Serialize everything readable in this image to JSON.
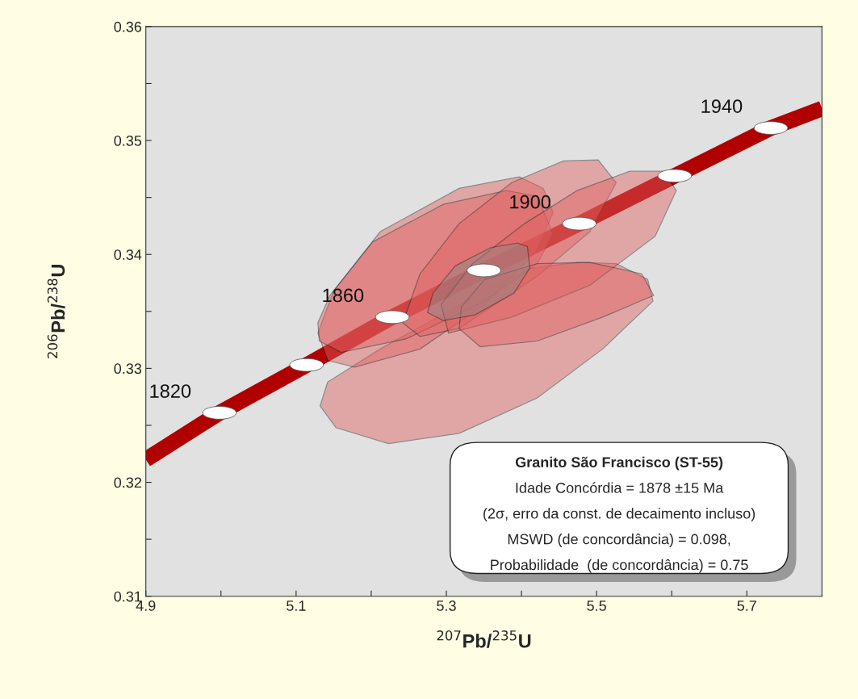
{
  "chart_data": {
    "type": "line",
    "xlabel": "$^{207}$Pb/$^{235}$U",
    "ylabel": "$^{206}$Pb/$^{238}$U",
    "xlim": [
      4.9,
      5.8
    ],
    "ylim": [
      0.31,
      0.36
    ],
    "xticks": [
      4.9,
      {
        "value": 5.0,
        "label": null
      },
      5.1,
      {
        "value": 5.2,
        "label": null
      },
      5.3,
      {
        "value": 5.4,
        "label": null
      },
      5.5,
      {
        "value": 5.6,
        "label": null
      },
      5.7
    ],
    "yticks": [
      0.31,
      {
        "value": 0.315,
        "label": null
      },
      0.32,
      {
        "value": 0.325,
        "label": null
      },
      0.33,
      {
        "value": 0.335,
        "label": null
      },
      0.34,
      {
        "value": 0.345,
        "label": null
      },
      0.35,
      {
        "value": 0.355,
        "label": null
      },
      0.36
    ],
    "grid": false,
    "legend": false,
    "series": [
      {
        "type": "line",
        "color": "#b00000",
        "x": [
          4.9,
          4.998,
          5.114,
          5.228,
          5.35,
          5.477,
          5.604,
          5.732,
          5.8
        ],
        "values": [
          0.322,
          0.3261,
          0.3303,
          0.3345,
          0.3386,
          0.3427,
          0.3469,
          0.3511,
          0.3528
        ]
      },
      {
        "type": "area",
        "color": "#e06060",
        "x": [
          5.132,
          5.153,
          5.223,
          5.317,
          5.421,
          5.508,
          5.575,
          5.568,
          5.526,
          5.474,
          5.414,
          5.351,
          5.212,
          5.142
        ],
        "values": [
          0.3267,
          0.3248,
          0.3234,
          0.3243,
          0.3274,
          0.3317,
          0.3359,
          0.3378,
          0.3392,
          0.3393,
          0.3388,
          0.3368,
          0.3317,
          0.3288
        ]
      },
      {
        "type": "area",
        "color": "#e06060",
        "x": [
          5.129,
          5.142,
          5.178,
          5.265,
          5.351,
          5.421,
          5.442,
          5.429,
          5.397,
          5.317,
          5.212,
          5.15
        ],
        "values": [
          0.3331,
          0.3307,
          0.3301,
          0.3317,
          0.3356,
          0.3404,
          0.3437,
          0.3458,
          0.3468,
          0.3458,
          0.342,
          0.3368
        ]
      },
      {
        "type": "area",
        "color": "#e06060",
        "x": [
          5.131,
          5.16,
          5.247,
          5.351,
          5.421,
          5.442,
          5.421,
          5.38,
          5.296,
          5.202,
          5.145,
          5.129
        ],
        "values": [
          0.3324,
          0.3314,
          0.3326,
          0.3359,
          0.3392,
          0.3418,
          0.3451,
          0.3456,
          0.3444,
          0.3411,
          0.3364,
          0.334
        ]
      },
      {
        "type": "area",
        "color": "#e06060",
        "x": [
          5.242,
          5.265,
          5.317,
          5.421,
          5.491,
          5.526,
          5.502,
          5.456,
          5.387,
          5.317,
          5.265
        ],
        "values": [
          0.334,
          0.3328,
          0.3335,
          0.3381,
          0.342,
          0.3463,
          0.3483,
          0.3482,
          0.3463,
          0.3427,
          0.3383
        ]
      },
      {
        "type": "area",
        "color": "#e06060",
        "x": [
          5.303,
          5.387,
          5.491,
          5.578,
          5.606,
          5.589,
          5.544,
          5.474,
          5.404,
          5.335,
          5.293
        ],
        "values": [
          0.3331,
          0.3345,
          0.3373,
          0.3416,
          0.3456,
          0.3473,
          0.3473,
          0.3456,
          0.3427,
          0.3392,
          0.3356
        ]
      },
      {
        "type": "area",
        "color": "#e06060",
        "x": [
          5.317,
          5.345,
          5.421,
          5.508,
          5.576,
          5.56,
          5.491,
          5.421,
          5.351,
          5.32
        ],
        "values": [
          0.3335,
          0.3319,
          0.3324,
          0.3345,
          0.3364,
          0.3383,
          0.3393,
          0.3392,
          0.3378,
          0.3354
        ]
      },
      {
        "type": "area",
        "color": "#8a8a8a",
        "x": [
          5.275,
          5.296,
          5.338,
          5.39,
          5.411,
          5.408,
          5.395,
          5.359,
          5.312,
          5.282
        ],
        "values": [
          0.3349,
          0.3342,
          0.3347,
          0.3366,
          0.3388,
          0.3407,
          0.341,
          0.3406,
          0.339,
          0.3366
        ]
      },
      {
        "type": "scatter",
        "color": "#ffffff",
        "marker": "circle",
        "x": [
          4.998,
          5.114,
          5.228,
          5.35,
          5.477,
          5.604,
          5.732
        ],
        "values": [
          0.3261,
          0.3303,
          0.3345,
          0.3386,
          0.3427,
          0.3469,
          0.3511
        ]
      }
    ],
    "annotations": [
      {
        "text": "1820",
        "x": 4.998,
        "y": 0.3261
      },
      {
        "text": "1860",
        "x": 5.228,
        "y": 0.3345
      },
      {
        "text": "1900",
        "x": 5.477,
        "y": 0.3427
      },
      {
        "text": "1940",
        "x": 5.732,
        "y": 0.3511
      },
      "Granito São Francisco (ST-55)",
      "Idade Concórdia = 1878 ±15 Ma",
      "(2σ, erro da const. de decaimento incluso)",
      "MSWD (de concordância) = 0.098,",
      "Probabilidade  (de concordância) = 0.75"
    ]
  }
}
